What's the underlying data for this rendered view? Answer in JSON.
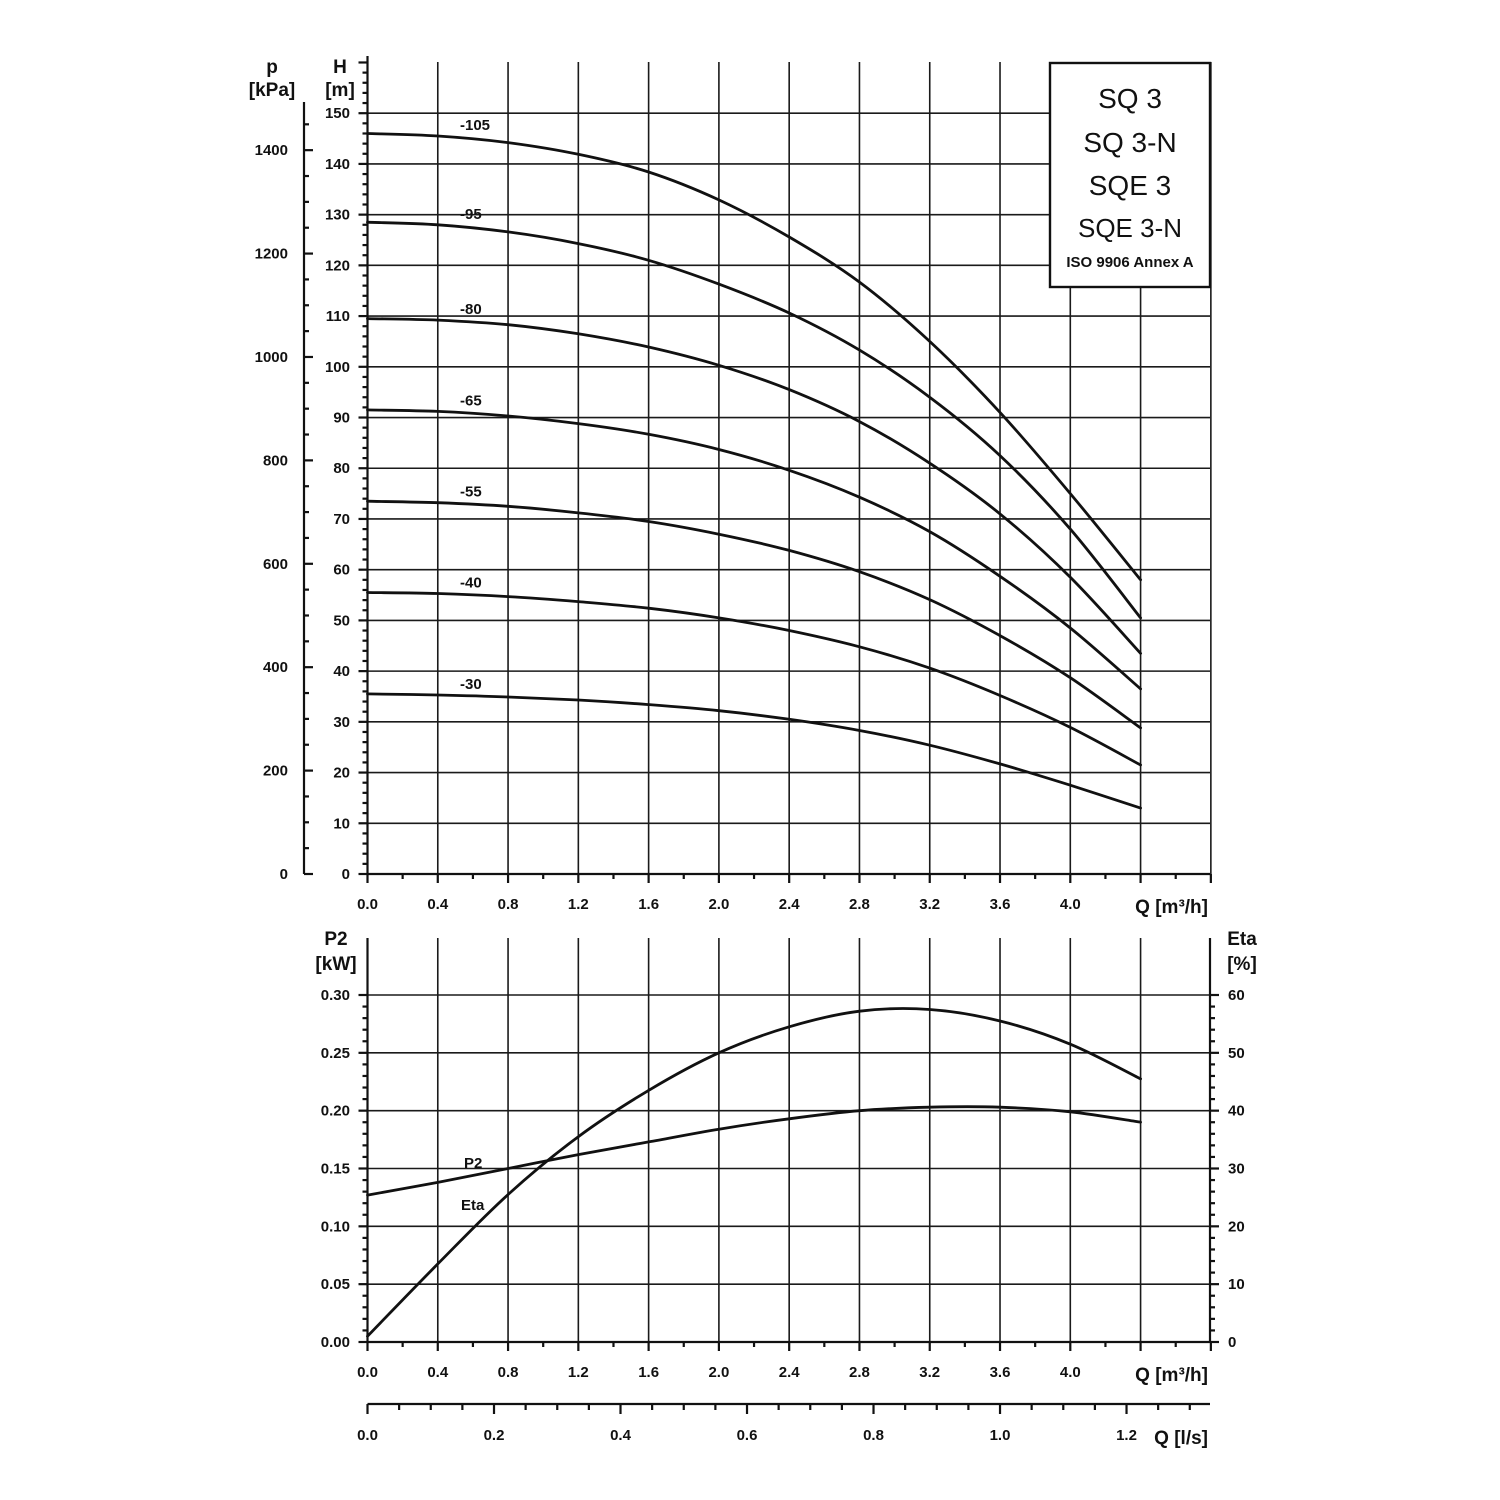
{
  "title_box": {
    "lines": [
      "SQ 3",
      "SQ 3-N",
      "SQE 3",
      "SQE 3-N"
    ],
    "note": "ISO 9906 Annex A"
  },
  "chart_data": [
    {
      "type": "line",
      "title": "",
      "xlabel": "Q [m³/h]",
      "ylabel": "H [m]",
      "ylabel_left": "p [kPa]",
      "xlim": [
        0,
        4.8
      ],
      "ylim": [
        0,
        160
      ],
      "xticks": [
        "0.0",
        "0.4",
        "0.8",
        "1.2",
        "1.6",
        "2.0",
        "2.4",
        "2.8",
        "3.2",
        "3.6",
        "4.0"
      ],
      "yticks": [
        "0",
        "10",
        "20",
        "30",
        "40",
        "50",
        "60",
        "70",
        "80",
        "90",
        "100",
        "110",
        "120",
        "130",
        "140",
        "150"
      ],
      "p_ticks": [
        "0",
        "200",
        "400",
        "600",
        "800",
        "1000",
        "1200",
        "1400"
      ],
      "grid": true,
      "series": [
        {
          "name": "-105",
          "x": [
            0,
            0.4,
            0.8,
            1.2,
            1.6,
            2.0,
            2.4,
            2.8,
            3.2,
            3.6,
            4.0,
            4.4
          ],
          "y": [
            146,
            145.5,
            144.2,
            141.9,
            138.4,
            132.9,
            125.6,
            116.7,
            105,
            91,
            75,
            58
          ]
        },
        {
          "name": "-95",
          "x": [
            0,
            0.4,
            0.8,
            1.2,
            1.6,
            2.0,
            2.4,
            2.8,
            3.2,
            3.6,
            4.0,
            4.4
          ],
          "y": [
            128.5,
            128,
            126.6,
            124.3,
            121,
            116.3,
            110.6,
            103.3,
            94,
            82.5,
            68,
            50.5
          ]
        },
        {
          "name": "-80",
          "x": [
            0,
            0.4,
            0.8,
            1.2,
            1.6,
            2.0,
            2.4,
            2.8,
            3.2,
            3.6,
            4.0,
            4.4
          ],
          "y": [
            109.5,
            109.2,
            108.3,
            106.5,
            103.9,
            100.3,
            95.5,
            89.2,
            81,
            71,
            58.5,
            43.5
          ]
        },
        {
          "name": "-65",
          "x": [
            0,
            0.4,
            0.8,
            1.2,
            1.6,
            2.0,
            2.4,
            2.8,
            3.2,
            3.6,
            4.0,
            4.4
          ],
          "y": [
            91.5,
            91.2,
            90.3,
            88.8,
            86.7,
            83.7,
            79.6,
            74.3,
            67.5,
            58.7,
            48.5,
            36.5
          ]
        },
        {
          "name": "-55",
          "x": [
            0,
            0.4,
            0.8,
            1.2,
            1.6,
            2.0,
            2.4,
            2.8,
            3.2,
            3.6,
            4.0,
            4.4
          ],
          "y": [
            73.5,
            73.2,
            72.5,
            71.2,
            69.5,
            67,
            63.8,
            59.6,
            54.1,
            47,
            38.7,
            28.8
          ]
        },
        {
          "name": "-40",
          "x": [
            0,
            0.4,
            0.8,
            1.2,
            1.6,
            2.0,
            2.4,
            2.8,
            3.2,
            3.6,
            4.0,
            4.4
          ],
          "y": [
            55.5,
            55.3,
            54.7,
            53.7,
            52.4,
            50.5,
            48,
            44.8,
            40.6,
            35.2,
            28.9,
            21.5
          ]
        },
        {
          "name": "-30",
          "x": [
            0,
            0.4,
            0.8,
            1.2,
            1.6,
            2.0,
            2.4,
            2.8,
            3.2,
            3.6,
            4.0,
            4.4
          ],
          "y": [
            35.5,
            35.3,
            34.9,
            34.3,
            33.4,
            32.2,
            30.5,
            28.3,
            25.4,
            21.7,
            17.5,
            13
          ]
        }
      ]
    },
    {
      "type": "line",
      "title": "",
      "xlabel": "Q [m³/h]",
      "xlabel_ls": "Q [l/s]",
      "ylabel": "P2 [kW]",
      "ylabel_right": "Eta [%]",
      "xlim": [
        0,
        4.8
      ],
      "ylim": [
        0,
        0.3
      ],
      "ylim_right": [
        0,
        60
      ],
      "xticks": [
        "0.0",
        "0.4",
        "0.8",
        "1.2",
        "1.6",
        "2.0",
        "2.4",
        "2.8",
        "3.2",
        "3.6",
        "4.0"
      ],
      "xticks_ls": [
        "0.0",
        "0.2",
        "0.4",
        "0.6",
        "0.8",
        "1.0",
        "1.2"
      ],
      "yticks": [
        "0.00",
        "0.05",
        "0.10",
        "0.15",
        "0.20",
        "0.25",
        "0.30"
      ],
      "yticks_right": [
        "0",
        "10",
        "20",
        "30",
        "40",
        "50",
        "60"
      ],
      "grid": true,
      "series": [
        {
          "name": "P2",
          "axis": "left",
          "x": [
            0,
            0.4,
            0.8,
            1.2,
            1.6,
            2.0,
            2.4,
            2.8,
            3.2,
            3.6,
            4.0,
            4.4
          ],
          "y": [
            0.127,
            0.138,
            0.15,
            0.162,
            0.173,
            0.184,
            0.193,
            0.2,
            0.203,
            0.203,
            0.199,
            0.19
          ]
        },
        {
          "name": "Eta",
          "axis": "right",
          "x": [
            0,
            0.4,
            0.8,
            1.2,
            1.6,
            2.0,
            2.4,
            2.8,
            3.2,
            3.6,
            4.0,
            4.4
          ],
          "y": [
            1,
            13.5,
            25.5,
            35.5,
            43.5,
            50,
            54.5,
            57.2,
            57.5,
            55.5,
            51.5,
            45.5
          ]
        }
      ]
    }
  ]
}
